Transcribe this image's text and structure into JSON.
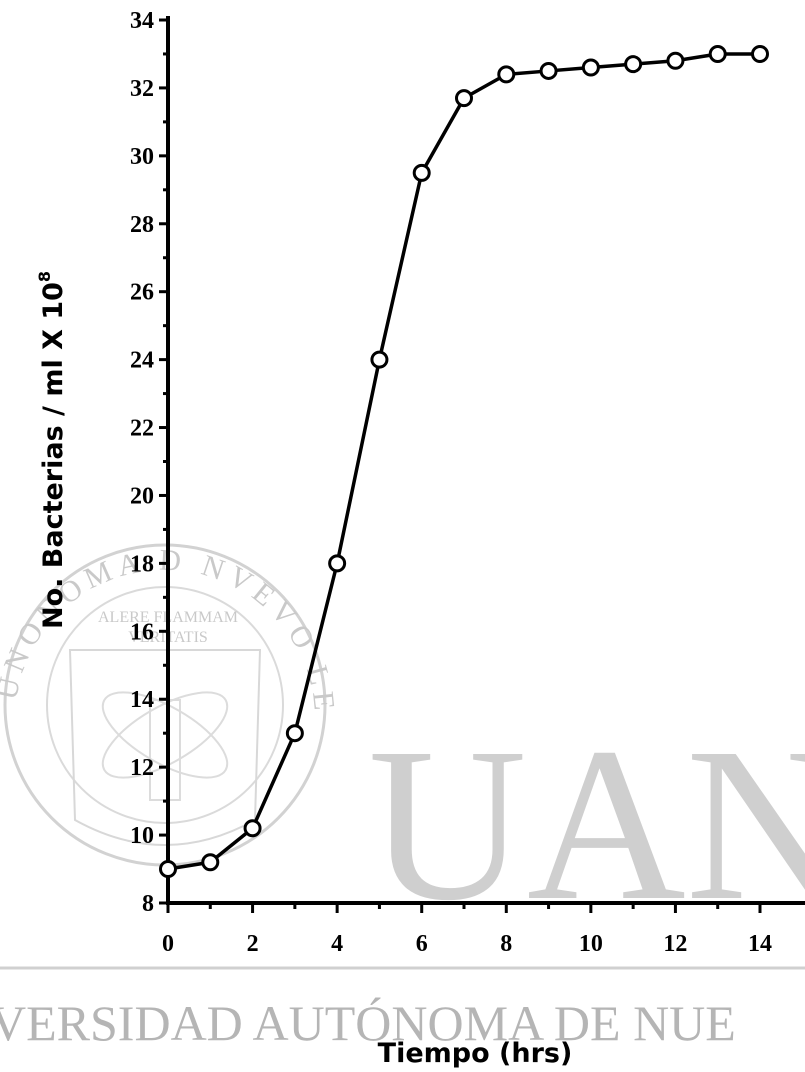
{
  "chart_data": {
    "type": "line",
    "xlabel": "Tiempo (hrs)",
    "ylabel": "No. Bacterias / ml X 10",
    "ylabel_exponent": "8",
    "xlim": [
      0,
      14
    ],
    "ylim": [
      8,
      34
    ],
    "x_ticks": [
      "0",
      "2",
      "4",
      "6",
      "8",
      "10",
      "12",
      "14"
    ],
    "y_ticks": [
      "8",
      "10",
      "12",
      "14",
      "16",
      "18",
      "20",
      "22",
      "24",
      "26",
      "28",
      "30",
      "32",
      "34"
    ],
    "grid": false,
    "marker": "open-circle",
    "series": [
      {
        "x": [
          0,
          1,
          2,
          3,
          4,
          5,
          6,
          7,
          8,
          9,
          10,
          11,
          12,
          13,
          14
        ],
        "values": [
          9.0,
          9.2,
          10.2,
          13.0,
          18.0,
          24.0,
          29.5,
          31.7,
          32.4,
          32.5,
          32.6,
          32.7,
          32.8,
          33.0,
          33.0
        ]
      }
    ]
  },
  "watermark": {
    "big_text": "UAN",
    "bottom_line": "VERSIDAD AUTÓNOMA DE NUE",
    "seal_arc_text": "UNONOMA D NVEVO LEON",
    "seal_motto_1": "ALERE FLAMMAM",
    "seal_motto_2": "VERITATIS"
  }
}
